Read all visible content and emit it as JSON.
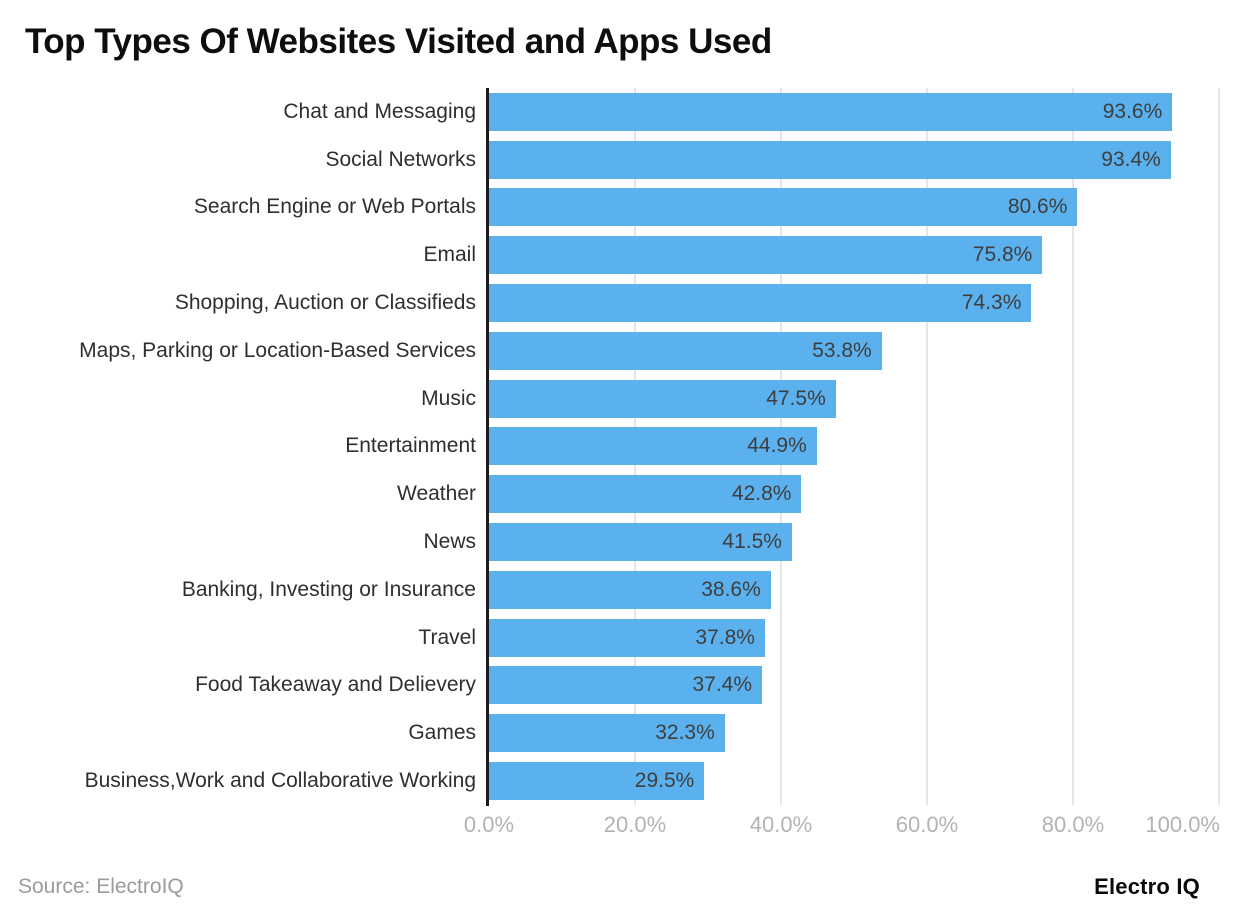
{
  "title": "Top Types Of Websites Visited and Apps Used",
  "footer": {
    "source": "Source: ElectroIQ",
    "brand": "Electro IQ"
  },
  "colors": {
    "bar": "#5BB1EE",
    "axis_line": "#1b1b1b",
    "gridline": "#e6e6e6",
    "category_label": "#2f2f2f",
    "value_label": "#3e3e3e",
    "tick_label": "#b3b3b3"
  },
  "chart_data": {
    "type": "bar",
    "orientation": "horizontal",
    "title": "Top Types Of Websites Visited and Apps Used",
    "xlabel": "",
    "ylabel": "",
    "xlim": [
      0,
      100
    ],
    "grid": true,
    "legend": false,
    "categories": [
      "Chat and Messaging",
      "Social Networks",
      "Search Engine or Web Portals",
      "Email",
      "Shopping, Auction or Classifieds",
      "Maps, Parking or Location-Based Services",
      "Music",
      "Entertainment",
      "Weather",
      "News",
      "Banking, Investing or Insurance",
      "Travel",
      "Food Takeaway and Delievery",
      "Games",
      "Business,Work and Collaborative Working"
    ],
    "values": [
      93.6,
      93.4,
      80.6,
      75.8,
      74.3,
      53.8,
      47.5,
      44.9,
      42.8,
      41.5,
      38.6,
      37.8,
      37.4,
      32.3,
      29.5
    ],
    "value_labels": [
      "93.6%",
      "93.4%",
      "80.6%",
      "75.8%",
      "74.3%",
      "53.8%",
      "47.5%",
      "44.9%",
      "42.8%",
      "41.5%",
      "38.6%",
      "37.8%",
      "37.4%",
      "32.3%",
      "29.5%"
    ],
    "x_ticks": [
      {
        "value": 0,
        "label": "0.0%"
      },
      {
        "value": 20,
        "label": "20.0%"
      },
      {
        "value": 40,
        "label": "40.0%"
      },
      {
        "value": 60,
        "label": "60.0%"
      },
      {
        "value": 80,
        "label": "80.0%"
      },
      {
        "value": 100,
        "label": "100.0%"
      }
    ]
  }
}
